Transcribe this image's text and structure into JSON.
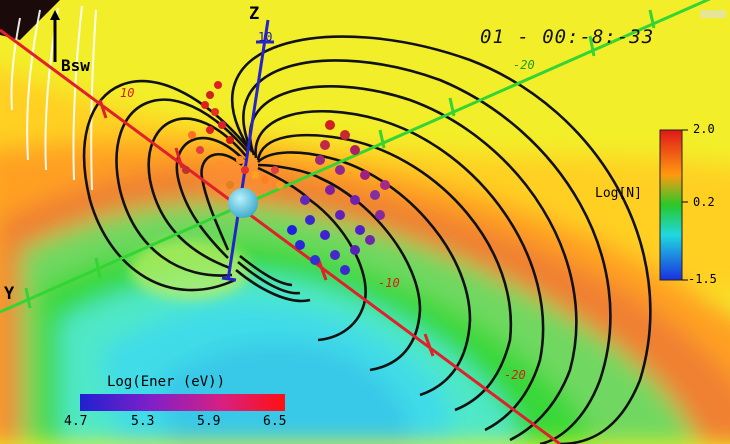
{
  "timestamp": "01 - 00:-8:-33",
  "solar_wind_label": "Bsw",
  "axes": {
    "z": {
      "label": "Z",
      "ticks": [
        "10"
      ]
    },
    "y": {
      "label": "Y"
    },
    "x_ticks": [
      "10",
      "-10",
      "-20"
    ],
    "y_ticks": [
      "-20"
    ]
  },
  "density_colorbar": {
    "title": "Log[N]",
    "max": "2.0",
    "mid": "0.2",
    "min": "-1.5"
  },
  "energy_colorbar": {
    "title": "Log(Ener (eV))",
    "ticks": [
      "4.7",
      "5.3",
      "5.9",
      "6.5"
    ]
  },
  "colors": {
    "background": "#f2ef2a",
    "x_axis": "#e0202a",
    "y_axis": "#33d433",
    "z_axis": "#2424c8",
    "earth": "#66c8dc"
  }
}
